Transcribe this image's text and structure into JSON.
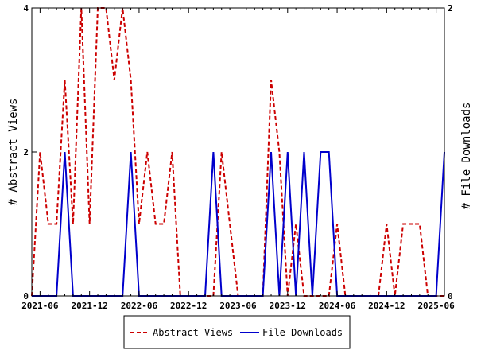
{
  "chart_data": {
    "type": "line",
    "x": [
      "2021-05",
      "2021-06",
      "2021-07",
      "2021-08",
      "2021-09",
      "2021-10",
      "2021-11",
      "2021-12",
      "2022-01",
      "2022-02",
      "2022-03",
      "2022-04",
      "2022-05",
      "2022-06",
      "2022-07",
      "2022-08",
      "2022-09",
      "2022-10",
      "2022-11",
      "2022-12",
      "2023-01",
      "2023-02",
      "2023-03",
      "2023-04",
      "2023-05",
      "2023-06",
      "2023-07",
      "2023-08",
      "2023-09",
      "2023-10",
      "2023-11",
      "2023-12",
      "2024-01",
      "2024-02",
      "2024-03",
      "2024-04",
      "2024-05",
      "2024-06",
      "2024-07",
      "2024-08",
      "2024-09",
      "2024-10",
      "2024-11",
      "2024-12",
      "2025-01",
      "2025-02",
      "2025-03",
      "2025-04",
      "2025-05",
      "2025-06",
      "2025-07"
    ],
    "series": [
      {
        "name": "Abstract Views",
        "axis": "left",
        "color": "#cc0000",
        "style": "dashed",
        "values": [
          0,
          2,
          1,
          1,
          3,
          1,
          4,
          1,
          4,
          4,
          3,
          4,
          3,
          1,
          2,
          1,
          1,
          2,
          0,
          0,
          0,
          0,
          0,
          2,
          1,
          0,
          0,
          0,
          0,
          3,
          2,
          0,
          1,
          0,
          0,
          0,
          0,
          1,
          0,
          0,
          0,
          0,
          0,
          1,
          0,
          1,
          1,
          1,
          0,
          0,
          0
        ]
      },
      {
        "name": "File Downloads",
        "axis": "right",
        "color": "#0000cc",
        "style": "solid",
        "values": [
          0,
          0,
          0,
          0,
          1,
          0,
          0,
          0,
          0,
          0,
          0,
          0,
          1,
          0,
          0,
          0,
          0,
          0,
          0,
          0,
          0,
          0,
          1,
          0,
          0,
          0,
          0,
          0,
          0,
          1,
          0,
          1,
          0,
          1,
          0,
          1,
          1,
          0,
          0,
          0,
          0,
          0,
          0,
          0,
          0,
          0,
          0,
          0,
          0,
          0,
          1
        ]
      }
    ],
    "xticks": [
      "2021-06",
      "2021-12",
      "2022-06",
      "2022-12",
      "2023-06",
      "2023-12",
      "2024-06",
      "2024-12",
      "2025-06"
    ],
    "ylabel": "# Abstract Views",
    "y2label": "# File Downloads",
    "ylim": [
      0,
      4
    ],
    "y2lim": [
      0,
      2
    ],
    "yticks": [
      0,
      2,
      4
    ],
    "y2ticks": [
      0,
      2
    ],
    "grid": false,
    "legend": "bottom"
  }
}
